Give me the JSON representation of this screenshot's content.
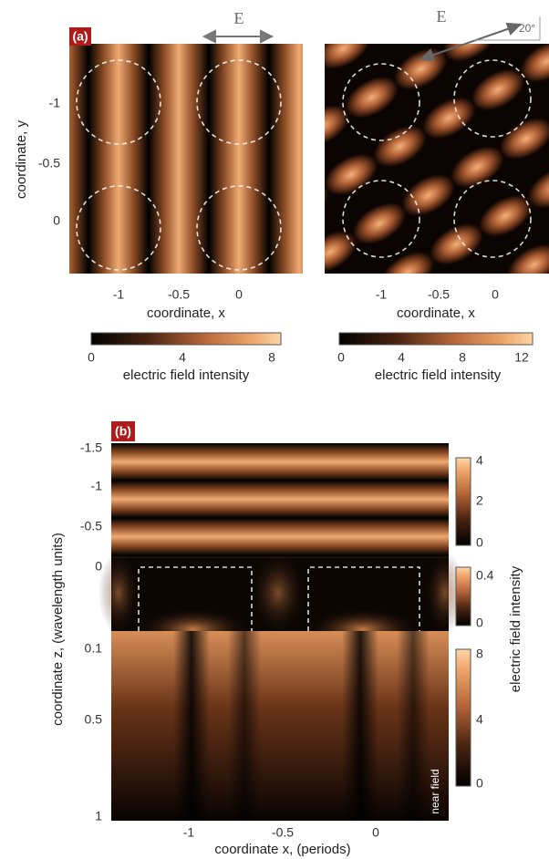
{
  "panel_a": {
    "label": "(a)",
    "field_label": "E",
    "field_label_right": "E",
    "angle_label": "20°",
    "left": {
      "y_axis_label": "coordinate, y",
      "yticks": [
        "-1",
        "-0.5",
        "0"
      ],
      "x_axis_label": "coordinate, x",
      "xticks": [
        "-1",
        "-0.5",
        "0"
      ],
      "colorbar_ticks": [
        "0",
        "4",
        "8"
      ],
      "colorbar_label": "electric field intensity"
    },
    "right": {
      "x_axis_label": "coordinate, x",
      "xticks": [
        "-1",
        "-0.5",
        "0"
      ],
      "colorbar_ticks": [
        "0",
        "4",
        "8",
        "12"
      ],
      "colorbar_label": "electric field intensity"
    }
  },
  "panel_b": {
    "label": "(b)",
    "y_axis_label": "coordinate z, (wavelength units)",
    "yticks_top": [
      "-1.5",
      "-1",
      "-0.5",
      "0"
    ],
    "yticks_bottom": [
      "0.1",
      "0.5",
      "1"
    ],
    "x_axis_label": "coordinate x, (periods)",
    "xticks": [
      "-1",
      "-0.5",
      "0"
    ],
    "colorbars": [
      [
        "0",
        "2",
        "4"
      ],
      [
        "0",
        "0.4"
      ],
      [
        "0",
        "4",
        "8"
      ]
    ],
    "colorbar_label": "electric field intensity",
    "annotation": "near field"
  }
}
